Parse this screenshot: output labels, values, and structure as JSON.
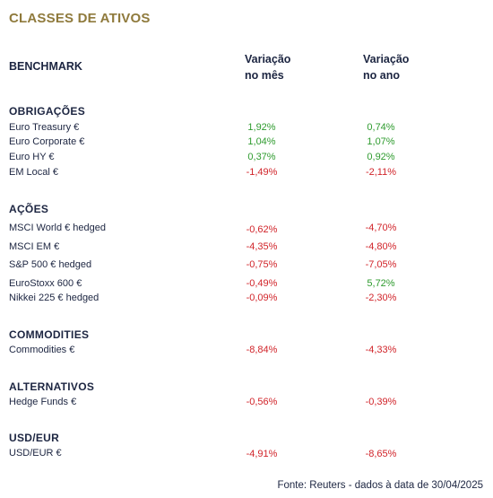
{
  "title": "CLASSES DE ATIVOS",
  "benchmark_label": "BENCHMARK",
  "columns": {
    "month": [
      "Variação",
      "no mês"
    ],
    "year": [
      "Variação",
      "no ano"
    ]
  },
  "sections": [
    {
      "name": "OBRIGAÇÕES",
      "rows": [
        {
          "label": "Euro Treasury €",
          "month": "1,92%",
          "year": "0,74%",
          "month_positive": true,
          "year_positive": true
        },
        {
          "label": "Euro Corporate €",
          "month": "1,04%",
          "year": "1,07%",
          "month_positive": true,
          "year_positive": true
        },
        {
          "label": "Euro HY €",
          "month": "0,37%",
          "year": "0,92%",
          "month_positive": true,
          "year_positive": true
        },
        {
          "label": "EM Local €",
          "month": "-1,49%",
          "year": "-2,11%",
          "month_positive": false,
          "year_positive": false
        }
      ]
    },
    {
      "name": "AÇÕES",
      "rows": [
        {
          "label": "MSCI World € hedged",
          "month": "-0,62%",
          "year": "-4,70%",
          "month_positive": false,
          "year_positive": false
        },
        {
          "label": "MSCI EM €",
          "month": "-4,35%",
          "year": "-4,80%",
          "month_positive": false,
          "year_positive": false
        },
        {
          "label": "S&P 500 € hedged",
          "month": "-0,75%",
          "year": "-7,05%",
          "month_positive": false,
          "year_positive": false
        },
        {
          "label": "EuroStoxx 600 €",
          "month": "-0,49%",
          "year": "5,72%",
          "month_positive": false,
          "year_positive": true
        },
        {
          "label": "Nikkei 225 € hedged",
          "month": "-0,09%",
          "year": "-2,30%",
          "month_positive": false,
          "year_positive": false
        }
      ]
    },
    {
      "name": "COMMODITIES",
      "rows": [
        {
          "label": "Commodities €",
          "month": "-8,84%",
          "year": "-4,33%",
          "month_positive": false,
          "year_positive": false
        }
      ]
    },
    {
      "name": "ALTERNATIVOS",
      "rows": [
        {
          "label": "Hedge Funds €",
          "month": "-0,56%",
          "year": "-0,39%",
          "month_positive": false,
          "year_positive": false
        }
      ]
    },
    {
      "name": "USD/EUR",
      "rows": [
        {
          "label": "USD/EUR €",
          "month": "-4,91%",
          "year": "-8,65%",
          "month_positive": false,
          "year_positive": false
        }
      ]
    }
  ],
  "colors": {
    "title": "#8f7a3c",
    "text": "#1c2541",
    "positive": "#2e9b2e",
    "negative": "#d1242a"
  },
  "footer": "Fonte: Reuters - dados à data de 30/04/2025"
}
